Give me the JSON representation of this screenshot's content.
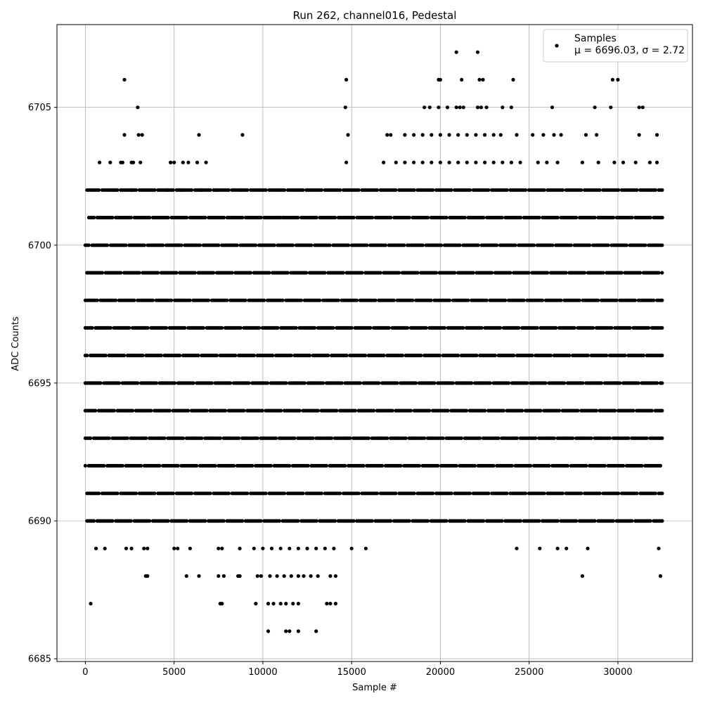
{
  "chart_data": {
    "type": "scatter",
    "title": "Run 262, channel016, Pedestal",
    "xlabel": "Sample #",
    "ylabel": "ADC Counts",
    "xlim": [
      -1600,
      34200
    ],
    "ylim": [
      6684.9,
      6708.0
    ],
    "xticks": [
      0,
      5000,
      10000,
      15000,
      20000,
      25000,
      30000
    ],
    "xtick_labels": [
      "0",
      "5000",
      "10000",
      "15000",
      "20000",
      "25000",
      "30000"
    ],
    "yticks": [
      6685,
      6690,
      6695,
      6700,
      6705
    ],
    "ytick_labels": [
      "6685",
      "6690",
      "6695",
      "6700",
      "6705"
    ],
    "grid": true,
    "legend": {
      "placement": "top-right",
      "entries": [
        {
          "label": "Samples",
          "sublabel": "μ = 6696.03, σ = 2.72"
        }
      ]
    },
    "series": [
      {
        "name": "Samples",
        "color": "#000000",
        "marker": "circle",
        "points_range": {
          "x": [
            0,
            32500
          ],
          "y": [
            6686,
            6707
          ]
        },
        "bands": [
          {
            "y": 6699,
            "segments": [
              [
                0,
                32500
              ]
            ]
          },
          {
            "y": 6698,
            "segments": [
              [
                0,
                32500
              ]
            ]
          },
          {
            "y": 6697,
            "segments": [
              [
                0,
                32500
              ]
            ]
          },
          {
            "y": 6696,
            "segments": [
              [
                0,
                32500
              ]
            ]
          },
          {
            "y": 6695,
            "segments": [
              [
                0,
                32500
              ]
            ]
          },
          {
            "y": 6694,
            "segments": [
              [
                0,
                32500
              ]
            ]
          },
          {
            "y": 6693,
            "segments": [
              [
                0,
                32500
              ]
            ]
          },
          {
            "y": 6700,
            "segments": [
              [
                0,
                32500
              ]
            ]
          },
          {
            "y": 6692,
            "segments": [
              [
                0,
                32500
              ]
            ]
          },
          {
            "y": 6701,
            "segments": [
              [
                200,
                32500
              ]
            ]
          },
          {
            "y": 6691,
            "segments": [
              [
                100,
                32500
              ]
            ]
          },
          {
            "y": 6702,
            "segments": [
              [
                100,
                32500
              ]
            ]
          },
          {
            "y": 6690,
            "segments": [
              [
                100,
                32500
              ]
            ]
          }
        ],
        "points": [
          [
            2200,
            6706
          ],
          [
            2950,
            6705
          ],
          [
            2200,
            6704
          ],
          [
            3000,
            6704
          ],
          [
            3200,
            6704
          ],
          [
            6400,
            6704
          ],
          [
            8850,
            6704
          ],
          [
            800,
            6703
          ],
          [
            1400,
            6703
          ],
          [
            2000,
            6703
          ],
          [
            2100,
            6703
          ],
          [
            2600,
            6703
          ],
          [
            2700,
            6703
          ],
          [
            3100,
            6703
          ],
          [
            4800,
            6703
          ],
          [
            5000,
            6703
          ],
          [
            5500,
            6703
          ],
          [
            5800,
            6703
          ],
          [
            6300,
            6703
          ],
          [
            6800,
            6703
          ],
          [
            14700,
            6706
          ],
          [
            14650,
            6705
          ],
          [
            14800,
            6704
          ],
          [
            14700,
            6703
          ],
          [
            12800,
            6701
          ],
          [
            11000,
            6701
          ],
          [
            20900,
            6707
          ],
          [
            22100,
            6707
          ],
          [
            19900,
            6706
          ],
          [
            20000,
            6706
          ],
          [
            21200,
            6706
          ],
          [
            22200,
            6706
          ],
          [
            22400,
            6706
          ],
          [
            24100,
            6706
          ],
          [
            29700,
            6706
          ],
          [
            30000,
            6706
          ],
          [
            19100,
            6705
          ],
          [
            19400,
            6705
          ],
          [
            19900,
            6705
          ],
          [
            20400,
            6705
          ],
          [
            20900,
            6705
          ],
          [
            21100,
            6705
          ],
          [
            21300,
            6705
          ],
          [
            22100,
            6705
          ],
          [
            22300,
            6705
          ],
          [
            22600,
            6705
          ],
          [
            23500,
            6705
          ],
          [
            24000,
            6705
          ],
          [
            26300,
            6705
          ],
          [
            28700,
            6705
          ],
          [
            29600,
            6705
          ],
          [
            31200,
            6705
          ],
          [
            31400,
            6705
          ],
          [
            17000,
            6704
          ],
          [
            17200,
            6704
          ],
          [
            18000,
            6704
          ],
          [
            18500,
            6704
          ],
          [
            19000,
            6704
          ],
          [
            19500,
            6704
          ],
          [
            20000,
            6704
          ],
          [
            20500,
            6704
          ],
          [
            21000,
            6704
          ],
          [
            21500,
            6704
          ],
          [
            22000,
            6704
          ],
          [
            22500,
            6704
          ],
          [
            23000,
            6704
          ],
          [
            23400,
            6704
          ],
          [
            24300,
            6704
          ],
          [
            25200,
            6704
          ],
          [
            25800,
            6704
          ],
          [
            26400,
            6704
          ],
          [
            26800,
            6704
          ],
          [
            28200,
            6704
          ],
          [
            28800,
            6704
          ],
          [
            31200,
            6704
          ],
          [
            32200,
            6704
          ],
          [
            16800,
            6703
          ],
          [
            17500,
            6703
          ],
          [
            18000,
            6703
          ],
          [
            18500,
            6703
          ],
          [
            19000,
            6703
          ],
          [
            19500,
            6703
          ],
          [
            20000,
            6703
          ],
          [
            20500,
            6703
          ],
          [
            21000,
            6703
          ],
          [
            21500,
            6703
          ],
          [
            22000,
            6703
          ],
          [
            22500,
            6703
          ],
          [
            23000,
            6703
          ],
          [
            23500,
            6703
          ],
          [
            24000,
            6703
          ],
          [
            24500,
            6703
          ],
          [
            25500,
            6703
          ],
          [
            26000,
            6703
          ],
          [
            26600,
            6703
          ],
          [
            28000,
            6703
          ],
          [
            28900,
            6703
          ],
          [
            29800,
            6703
          ],
          [
            30300,
            6703
          ],
          [
            31000,
            6703
          ],
          [
            31800,
            6703
          ],
          [
            32200,
            6703
          ],
          [
            1600,
            6702
          ],
          [
            2600,
            6702
          ],
          [
            4600,
            6702
          ],
          [
            5400,
            6702
          ],
          [
            6500,
            6702
          ],
          [
            7400,
            6702
          ],
          [
            8800,
            6702
          ],
          [
            600,
            6689
          ],
          [
            1100,
            6689
          ],
          [
            2300,
            6689
          ],
          [
            2600,
            6689
          ],
          [
            3300,
            6689
          ],
          [
            3500,
            6689
          ],
          [
            5000,
            6689
          ],
          [
            5200,
            6689
          ],
          [
            5900,
            6689
          ],
          [
            7500,
            6689
          ],
          [
            7700,
            6689
          ],
          [
            8700,
            6689
          ],
          [
            9500,
            6689
          ],
          [
            10000,
            6689
          ],
          [
            10500,
            6689
          ],
          [
            11000,
            6689
          ],
          [
            11500,
            6689
          ],
          [
            12000,
            6689
          ],
          [
            12500,
            6689
          ],
          [
            13000,
            6689
          ],
          [
            13500,
            6689
          ],
          [
            14000,
            6689
          ],
          [
            15000,
            6689
          ],
          [
            15800,
            6689
          ],
          [
            24300,
            6689
          ],
          [
            25600,
            6689
          ],
          [
            26600,
            6689
          ],
          [
            27100,
            6689
          ],
          [
            28300,
            6689
          ],
          [
            32300,
            6689
          ],
          [
            3400,
            6688
          ],
          [
            3500,
            6688
          ],
          [
            5700,
            6688
          ],
          [
            6400,
            6688
          ],
          [
            7500,
            6688
          ],
          [
            7800,
            6688
          ],
          [
            8600,
            6688
          ],
          [
            8700,
            6688
          ],
          [
            9700,
            6688
          ],
          [
            9900,
            6688
          ],
          [
            10400,
            6688
          ],
          [
            10800,
            6688
          ],
          [
            11200,
            6688
          ],
          [
            11600,
            6688
          ],
          [
            12000,
            6688
          ],
          [
            12300,
            6688
          ],
          [
            12700,
            6688
          ],
          [
            13100,
            6688
          ],
          [
            13800,
            6688
          ],
          [
            14100,
            6688
          ],
          [
            28000,
            6688
          ],
          [
            32400,
            6688
          ],
          [
            300,
            6687
          ],
          [
            7600,
            6687
          ],
          [
            7700,
            6687
          ],
          [
            9600,
            6687
          ],
          [
            10300,
            6687
          ],
          [
            10600,
            6687
          ],
          [
            11000,
            6687
          ],
          [
            11300,
            6687
          ],
          [
            11700,
            6687
          ],
          [
            12000,
            6687
          ],
          [
            13600,
            6687
          ],
          [
            13800,
            6687
          ],
          [
            14100,
            6687
          ],
          [
            10300,
            6686
          ],
          [
            11300,
            6686
          ],
          [
            11500,
            6686
          ],
          [
            12000,
            6686
          ],
          [
            13000,
            6686
          ]
        ]
      }
    ]
  }
}
